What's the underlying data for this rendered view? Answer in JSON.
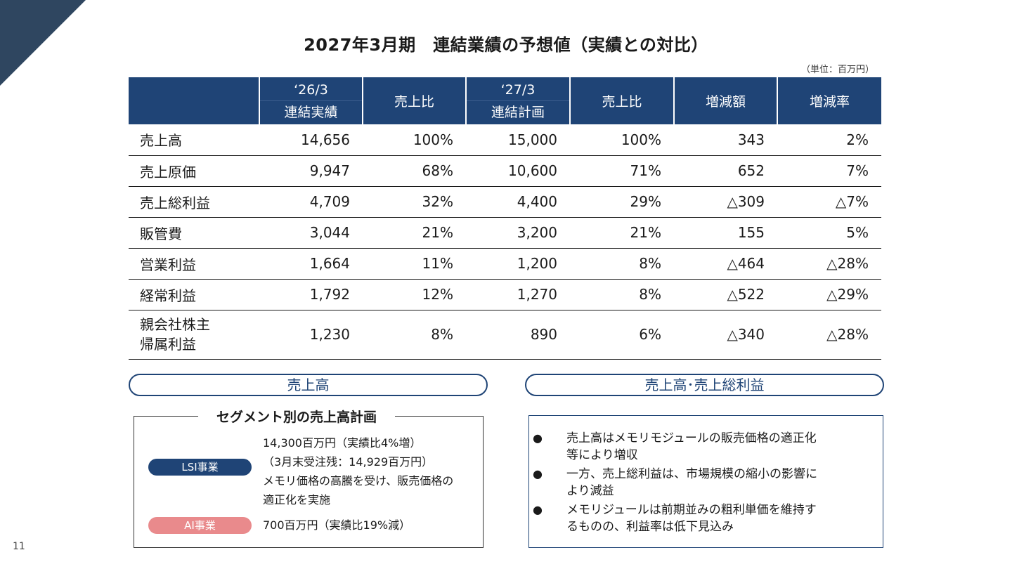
{
  "title": "2027年3月期　連結業績の予想値（実績との対比）",
  "unit": "（単位：百万円）",
  "table": {
    "headers": [
      {
        "l1": "",
        "l2": ""
      },
      {
        "l1": "‘26/3",
        "l2": "連結実績"
      },
      {
        "l1": "売上比",
        "l2": ""
      },
      {
        "l1": "‘27/3",
        "l2": "連結計画"
      },
      {
        "l1": "売上比",
        "l2": ""
      },
      {
        "l1": "増減額",
        "l2": ""
      },
      {
        "l1": "増減率",
        "l2": ""
      }
    ],
    "rows": [
      {
        "label": "売上高",
        "cells": [
          "14,656",
          "100%",
          "15,000",
          "100%",
          "343",
          "2%"
        ]
      },
      {
        "label": "売上原価",
        "cells": [
          "9,947",
          "68%",
          "10,600",
          "71%",
          "652",
          "7%"
        ]
      },
      {
        "label": "売上総利益",
        "cells": [
          "4,709",
          "32%",
          "4,400",
          "29%",
          "△309",
          "△7%"
        ]
      },
      {
        "label": "販管費",
        "cells": [
          "3,044",
          "21%",
          "3,200",
          "21%",
          "155",
          "5%"
        ]
      },
      {
        "label": "営業利益",
        "cells": [
          "1,664",
          "11%",
          "1,200",
          "8%",
          "△464",
          "△28%"
        ]
      },
      {
        "label": "経常利益",
        "cells": [
          "1,792",
          "12%",
          "1,270",
          "8%",
          "△522",
          "△29%"
        ]
      },
      {
        "label": "親会社株主",
        "label2": "帰属利益",
        "cells": [
          "1,230",
          "8%",
          "890",
          "6%",
          "△340",
          "△28%"
        ]
      }
    ]
  },
  "left_section": {
    "heading": "売上高",
    "box_title": "セグメント別の売上高計画",
    "segments": [
      {
        "tag": "LSI事業",
        "color": "#1f4476",
        "lines": [
          "14,300百万円（実績比4%増）",
          "（3月末受注残：14,929百万円）",
          "メモリ価格の高騰を受け、販売価格の",
          "適正化を実施"
        ]
      },
      {
        "tag": "AI事業",
        "color": "#e98a8c",
        "lines": [
          "700百万円（実績比19%減）"
        ]
      }
    ]
  },
  "right_section": {
    "heading": "売上高･売上総利益",
    "bullet": "●",
    "notes": [
      {
        "l1": "売上高はメモリモジュールの販売価格の適正化",
        "l2": "等により増収"
      },
      {
        "l1": "一方、売上総利益は、市場規模の縮小の影響に",
        "l2": "より減益"
      },
      {
        "l1": "メモリジュールは前期並みの粗利単価を維持す",
        "l2": "るものの、利益率は低下見込み"
      }
    ]
  },
  "page_number": "11",
  "colors": {
    "navy": "#1f4476",
    "corner": "#2f4660",
    "ai_tag": "#e98a8c"
  }
}
